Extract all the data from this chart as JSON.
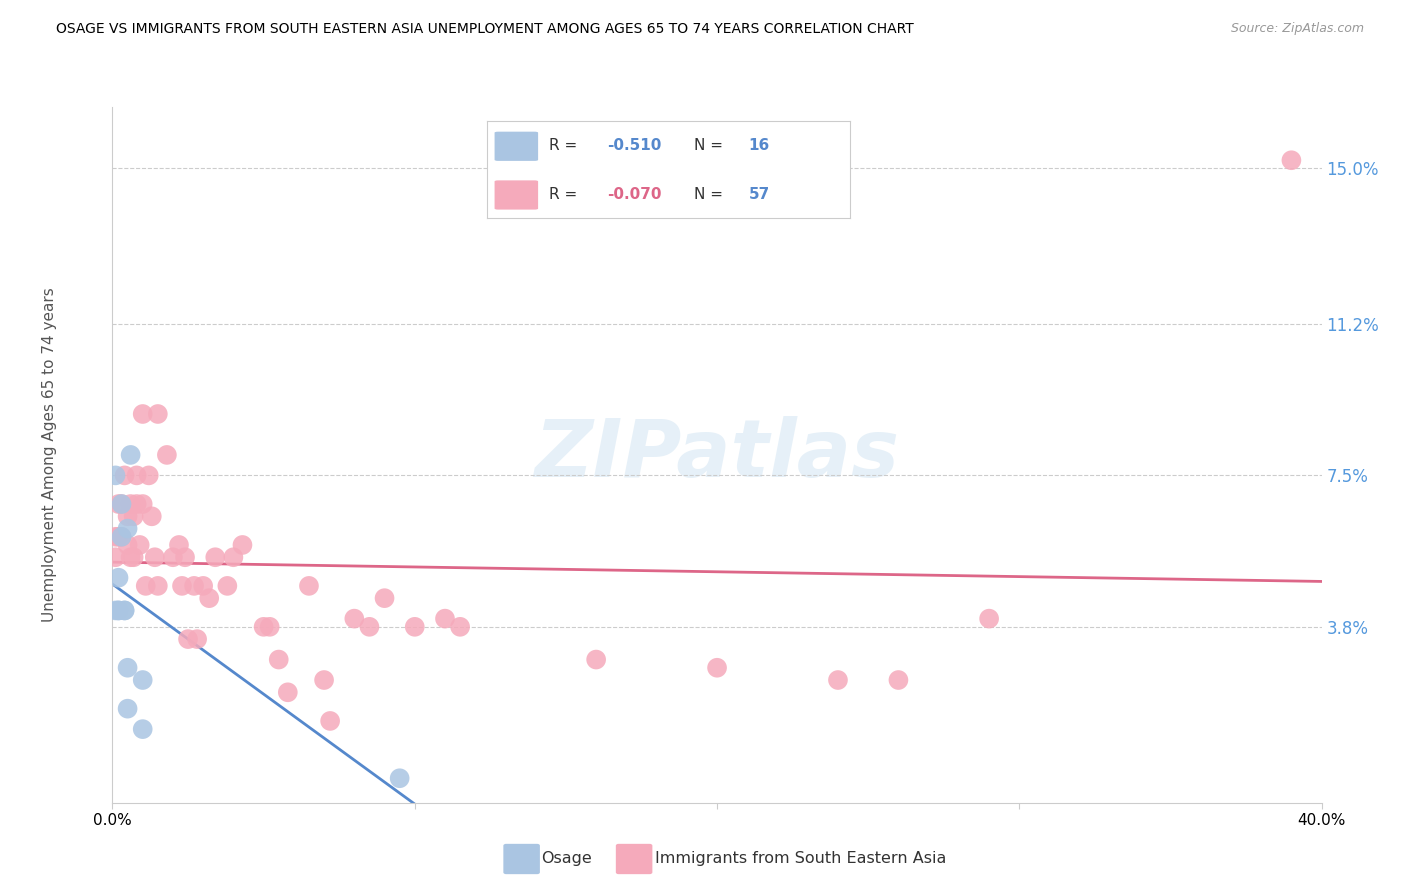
{
  "title": "OSAGE VS IMMIGRANTS FROM SOUTH EASTERN ASIA UNEMPLOYMENT AMONG AGES 65 TO 74 YEARS CORRELATION CHART",
  "source": "Source: ZipAtlas.com",
  "ylabel": "Unemployment Among Ages 65 to 74 years",
  "xlim": [
    0.0,
    0.4
  ],
  "ylim": [
    -0.005,
    0.165
  ],
  "yticks": [
    0.038,
    0.075,
    0.112,
    0.15
  ],
  "ytick_labels": [
    "3.8%",
    "7.5%",
    "11.2%",
    "15.0%"
  ],
  "xticks": [
    0.0,
    0.1,
    0.2,
    0.3,
    0.4
  ],
  "xtick_labels": [
    "0.0%",
    "",
    "",
    "",
    "40.0%"
  ],
  "osage_R": "-0.510",
  "osage_N": "16",
  "sea_R": "-0.070",
  "sea_N": "57",
  "osage_color": "#aac5e2",
  "sea_color": "#f5aabb",
  "osage_line_color": "#5588cc",
  "sea_line_color": "#dd6688",
  "legend_label_1": "Osage",
  "legend_label_2": "Immigrants from South Eastern Asia",
  "watermark": "ZIPatlas",
  "osage_x": [
    0.001,
    0.001,
    0.002,
    0.002,
    0.002,
    0.003,
    0.003,
    0.004,
    0.004,
    0.005,
    0.005,
    0.005,
    0.006,
    0.01,
    0.01,
    0.095
  ],
  "osage_y": [
    0.075,
    0.042,
    0.05,
    0.042,
    0.042,
    0.068,
    0.06,
    0.042,
    0.042,
    0.062,
    0.028,
    0.018,
    0.08,
    0.025,
    0.013,
    0.001
  ],
  "sea_x": [
    0.001,
    0.001,
    0.002,
    0.002,
    0.003,
    0.003,
    0.004,
    0.005,
    0.005,
    0.006,
    0.006,
    0.007,
    0.007,
    0.008,
    0.008,
    0.009,
    0.01,
    0.01,
    0.011,
    0.012,
    0.013,
    0.014,
    0.015,
    0.015,
    0.018,
    0.02,
    0.022,
    0.023,
    0.024,
    0.025,
    0.027,
    0.028,
    0.03,
    0.032,
    0.034,
    0.038,
    0.04,
    0.043,
    0.05,
    0.052,
    0.055,
    0.058,
    0.065,
    0.07,
    0.072,
    0.08,
    0.085,
    0.09,
    0.1,
    0.11,
    0.115,
    0.16,
    0.2,
    0.24,
    0.26,
    0.29,
    0.39
  ],
  "sea_y": [
    0.06,
    0.055,
    0.068,
    0.06,
    0.068,
    0.06,
    0.075,
    0.065,
    0.058,
    0.068,
    0.055,
    0.065,
    0.055,
    0.075,
    0.068,
    0.058,
    0.09,
    0.068,
    0.048,
    0.075,
    0.065,
    0.055,
    0.09,
    0.048,
    0.08,
    0.055,
    0.058,
    0.048,
    0.055,
    0.035,
    0.048,
    0.035,
    0.048,
    0.045,
    0.055,
    0.048,
    0.055,
    0.058,
    0.038,
    0.038,
    0.03,
    0.022,
    0.048,
    0.025,
    0.015,
    0.04,
    0.038,
    0.045,
    0.038,
    0.04,
    0.038,
    0.03,
    0.028,
    0.025,
    0.025,
    0.04,
    0.152
  ]
}
